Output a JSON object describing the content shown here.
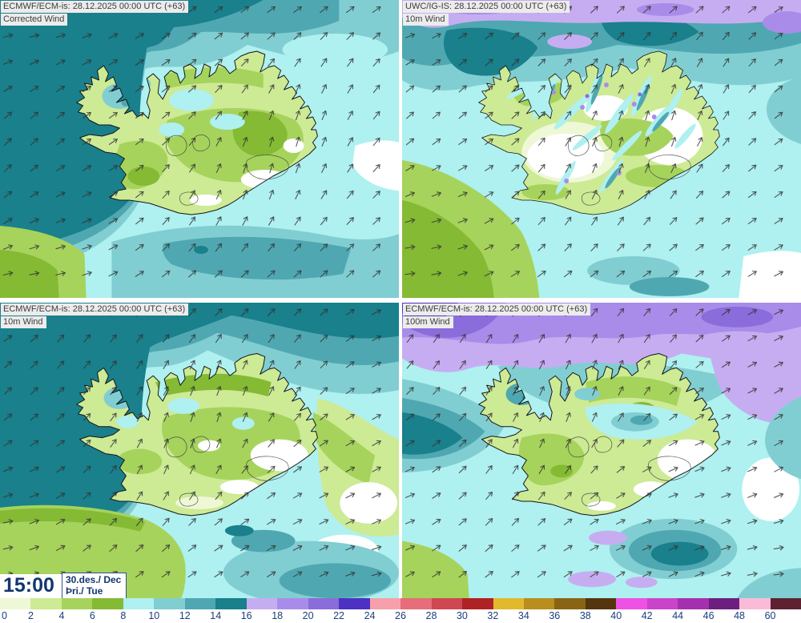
{
  "panels": [
    {
      "model_line": "ECMWF/ECM-is: 28.12.2025 00:00 UTC (+63)",
      "variable": "Corrected Wind"
    },
    {
      "model_line": "UWC/IG-IS: 28.12.2025 00:00 UTC (+63)",
      "variable": "10m Wind"
    },
    {
      "model_line": "ECMWF/ECM-is: 28.12.2025 00:00 UTC (+63)",
      "variable": "10m Wind"
    },
    {
      "model_line": "ECMWF/ECM-is: 28.12.2025 00:00 UTC (+63)",
      "variable": "100m Wind"
    }
  ],
  "timebox": {
    "time": "15:00",
    "date": "30.des./ Dec",
    "day": "Þri./ Tue"
  },
  "colorbar": {
    "values": [
      0,
      2,
      4,
      6,
      8,
      10,
      12,
      14,
      16,
      18,
      20,
      22,
      24,
      26,
      28,
      30,
      32,
      34,
      36,
      38,
      40,
      42,
      44,
      46,
      48,
      60
    ],
    "colors": [
      "#eef8d6",
      "#cdea95",
      "#a6d35c",
      "#84ba34",
      "#aff0f0",
      "#81ced2",
      "#4fa8b1",
      "#19808c",
      "#c6adf1",
      "#a98ce9",
      "#8a6cda",
      "#4c31c2",
      "#f7a0ab",
      "#e66d79",
      "#cf4750",
      "#b02126",
      "#e2b92d",
      "#b98e1e",
      "#8a6415",
      "#54350d",
      "#ee51e3",
      "#c944c9",
      "#a530ad",
      "#6d1f7f",
      "#f9bbd7",
      "#5e2130"
    ]
  },
  "colors": {
    "tick_text": "#1c3e7c",
    "chip_bg": "#ececec",
    "chip_text": "#3c3c3c",
    "time_text": "#14366e",
    "arrow": "#333333",
    "coast": "#151515",
    "white": "#ffffff"
  }
}
